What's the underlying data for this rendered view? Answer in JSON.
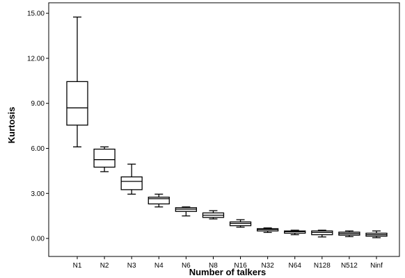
{
  "chart_data": {
    "type": "boxplot",
    "title": "",
    "xlabel": "Number of talkers",
    "ylabel": "Kurtosis",
    "ylim": [
      -1.2,
      15.7
    ],
    "y_ticks": [
      "0.00",
      "3.00",
      "6.00",
      "9.00",
      "12.00",
      "15.00"
    ],
    "grid": false,
    "categories": [
      "N1",
      "N2",
      "N3",
      "N4",
      "N6",
      "N8",
      "N16",
      "N32",
      "N64",
      "N128",
      "N512",
      "Ninf"
    ],
    "boxes": [
      {
        "category": "N1",
        "whisker_low": 6.1,
        "q1": 7.55,
        "median": 8.7,
        "q3": 10.45,
        "whisker_high": 14.75
      },
      {
        "category": "N2",
        "whisker_low": 4.45,
        "q1": 4.75,
        "median": 5.25,
        "q3": 5.95,
        "whisker_high": 6.1
      },
      {
        "category": "N3",
        "whisker_low": 2.95,
        "q1": 3.25,
        "median": 3.8,
        "q3": 4.1,
        "whisker_high": 4.95
      },
      {
        "category": "N4",
        "whisker_low": 2.1,
        "q1": 2.3,
        "median": 2.65,
        "q3": 2.75,
        "whisker_high": 2.95
      },
      {
        "category": "N6",
        "whisker_low": 1.5,
        "q1": 1.8,
        "median": 1.95,
        "q3": 2.05,
        "whisker_high": 2.1
      },
      {
        "category": "N8",
        "whisker_low": 1.3,
        "q1": 1.4,
        "median": 1.55,
        "q3": 1.7,
        "whisker_high": 1.85
      },
      {
        "category": "N16",
        "whisker_low": 0.75,
        "q1": 0.85,
        "median": 1.0,
        "q3": 1.1,
        "whisker_high": 1.25
      },
      {
        "category": "N32",
        "whisker_low": 0.4,
        "q1": 0.5,
        "median": 0.6,
        "q3": 0.65,
        "whisker_high": 0.7
      },
      {
        "category": "N64",
        "whisker_low": 0.25,
        "q1": 0.35,
        "median": 0.45,
        "q3": 0.5,
        "whisker_high": 0.55
      },
      {
        "category": "N128",
        "whisker_low": 0.1,
        "q1": 0.25,
        "median": 0.4,
        "q3": 0.5,
        "whisker_high": 0.55
      },
      {
        "category": "N512",
        "whisker_low": 0.12,
        "q1": 0.22,
        "median": 0.32,
        "q3": 0.42,
        "whisker_high": 0.5
      },
      {
        "category": "Ninf",
        "whisker_low": 0.05,
        "q1": 0.15,
        "median": 0.25,
        "q3": 0.35,
        "whisker_high": 0.5
      }
    ],
    "colors": {
      "box_fill": "#ffffff",
      "stroke": "#000000"
    }
  }
}
